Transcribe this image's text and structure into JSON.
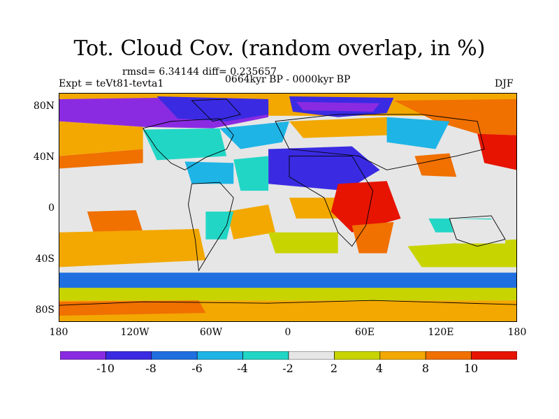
{
  "title": "Tot. Cloud Cov. (random overlap, in %)",
  "stats_line": "rmsd= 6.34144 diff= 0.235657",
  "experiment": "Expt = teVt81-tevta1",
  "period": "0664kyr BP - 0000kyr BP",
  "season": "DJF",
  "latitude_labels": [
    "80N",
    "40N",
    "0",
    "40S",
    "80S"
  ],
  "longitude_labels": [
    "180",
    "120W",
    "60W",
    "0",
    "60E",
    "120E",
    "180"
  ],
  "colorbar": {
    "labels": [
      "-10",
      "-8",
      "-6",
      "-4",
      "-2",
      "2",
      "4",
      "8",
      "10"
    ],
    "colors": [
      "#8a2be2",
      "#3a2be2",
      "#1f6fe0",
      "#1fb4e6",
      "#22d6c6",
      "#e6e6e6",
      "#c8d400",
      "#f2a800",
      "#f07000",
      "#e61400"
    ]
  },
  "map_colors": {
    "purple": "#8a2be2",
    "blue": "#3a2be2",
    "midblue": "#1f6fe0",
    "lightblue": "#1fb4e6",
    "cyan": "#22d6c6",
    "grey": "#e6e6e6",
    "yellow": "#c8d400",
    "orange": "#f2a800",
    "darkorange": "#f07000",
    "red": "#e61400"
  }
}
